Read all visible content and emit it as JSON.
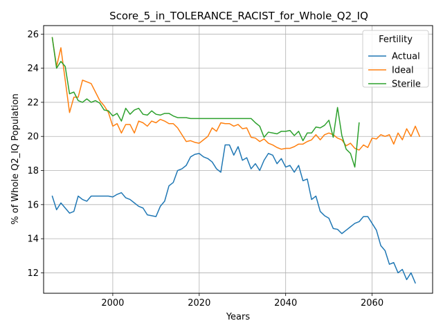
{
  "chart_data": {
    "type": "line",
    "title": "Score_5_in_TOLERANCE_RACIST_for_Whole_Q2_IQ",
    "xlabel": "Years",
    "ylabel": "% of Whole Q2_IQ Population",
    "xlim": [
      1984,
      2074
    ],
    "ylim": [
      10.8,
      26.5
    ],
    "xticks": [
      2000,
      2020,
      2040,
      2060
    ],
    "yticks": [
      12,
      14,
      16,
      18,
      20,
      22,
      24,
      26
    ],
    "grid": true,
    "legend": {
      "title": "Fertility",
      "placement": "top-right"
    },
    "series": [
      {
        "name": "Actual",
        "color": "#1f77b4",
        "start_year": 1986,
        "values": [
          16.5,
          15.7,
          16.1,
          15.8,
          15.5,
          15.6,
          16.5,
          16.3,
          16.2,
          16.5,
          16.5,
          16.5,
          16.5,
          16.5,
          16.45,
          16.6,
          16.7,
          16.4,
          16.3,
          16.1,
          15.9,
          15.8,
          15.4,
          15.35,
          15.3,
          15.9,
          16.2,
          17.1,
          17.3,
          18.0,
          18.1,
          18.3,
          18.8,
          18.95,
          19.0,
          18.8,
          18.7,
          18.5,
          18.1,
          17.9,
          19.5,
          19.5,
          18.9,
          19.4,
          18.6,
          18.75,
          18.1,
          18.4,
          18.0,
          18.6,
          19.0,
          18.9,
          18.4,
          18.7,
          18.2,
          18.3,
          17.9,
          18.3,
          17.4,
          17.5,
          16.3,
          16.5,
          15.6,
          15.35,
          15.2,
          14.6,
          14.55,
          14.3,
          14.5,
          14.7,
          14.9,
          15.0,
          15.3,
          15.3,
          14.9,
          14.5,
          13.6,
          13.3,
          12.5,
          12.6,
          12.0,
          12.2,
          11.6,
          12.0,
          11.4
        ]
      },
      {
        "name": "Ideal",
        "color": "#ff7f0e",
        "start_year": 1986,
        "values": [
          25.8,
          24.1,
          25.2,
          23.3,
          21.4,
          22.3,
          22.3,
          23.3,
          23.2,
          23.1,
          22.6,
          22.1,
          21.8,
          21.4,
          20.6,
          20.75,
          20.2,
          20.7,
          20.7,
          20.2,
          20.9,
          20.8,
          20.6,
          20.9,
          20.8,
          21.0,
          20.9,
          20.75,
          20.75,
          20.5,
          20.1,
          19.7,
          19.75,
          19.65,
          19.6,
          19.8,
          20.0,
          20.5,
          20.3,
          20.8,
          20.75,
          20.75,
          20.6,
          20.7,
          20.45,
          20.5,
          19.95,
          19.9,
          19.7,
          19.85,
          19.6,
          19.5,
          19.35,
          19.25,
          19.3,
          19.3,
          19.4,
          19.55,
          19.55,
          19.7,
          19.8,
          20.1,
          19.8,
          20.1,
          20.2,
          20.1,
          19.9,
          19.8,
          19.45,
          19.6,
          19.3,
          19.2,
          19.5,
          19.35,
          19.9,
          19.85,
          20.1,
          20.0,
          20.1,
          19.55,
          20.2,
          19.8,
          20.45,
          20.0,
          20.6,
          20.0
        ]
      },
      {
        "name": "Sterile",
        "color": "#2ca02c",
        "start_year": 1986,
        "values": [
          25.8,
          24.0,
          24.4,
          24.1,
          22.5,
          22.6,
          22.1,
          22.0,
          22.2,
          22.0,
          22.1,
          21.95,
          21.55,
          21.5,
          21.2,
          21.35,
          20.9,
          21.65,
          21.3,
          21.55,
          21.65,
          21.3,
          21.25,
          21.5,
          21.3,
          21.25,
          21.35,
          21.35,
          21.2,
          21.1,
          21.1,
          21.1,
          21.05,
          21.05,
          21.05,
          21.05,
          21.05,
          21.05,
          21.05,
          21.05,
          21.05,
          21.05,
          21.05,
          21.05,
          21.05,
          21.05,
          21.05,
          20.8,
          20.6,
          19.95,
          20.25,
          20.2,
          20.15,
          20.3,
          20.3,
          20.35,
          20.05,
          20.3,
          19.75,
          20.2,
          20.2,
          20.55,
          20.5,
          20.65,
          20.95,
          19.95,
          21.7,
          20.05,
          19.25,
          19.0,
          18.2,
          20.8
        ]
      }
    ]
  }
}
